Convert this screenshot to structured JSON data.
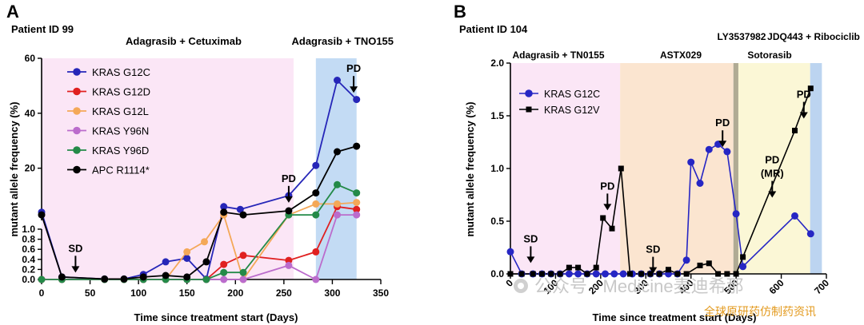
{
  "chart_data": [
    {
      "panel_label": "A",
      "type": "line",
      "title": "Patient ID 99",
      "xlabel": "Time since treatment start (Days)",
      "ylabel": "mutant allele frequency (%)",
      "xlim": [
        0,
        350
      ],
      "x_ticks": [
        "0",
        "50",
        "100",
        "150",
        "200",
        "250",
        "300",
        "350"
      ],
      "y_axis_broken": true,
      "ylim_lower": [
        0,
        1.0
      ],
      "ylim_upper": [
        1.0,
        60
      ],
      "y_ticks_lower": [
        "0.0",
        "0.2",
        "0.4",
        "0.6",
        "0.8",
        "1.0"
      ],
      "y_ticks_upper": [
        "20",
        "40",
        "60"
      ],
      "legend_position": "top-left",
      "treatment_periods": [
        {
          "label": "Adagrasib + Cetuximab",
          "start": 0,
          "end": 260,
          "color": "#fbe6f6"
        },
        {
          "label": "Adagrasib + TNO155",
          "start": 283,
          "end": 325,
          "color": "#c3dbf4"
        }
      ],
      "annotations": [
        {
          "text": "SD",
          "x": 35,
          "y_axis": "lower",
          "y": 0.55
        },
        {
          "text": "PD",
          "x": 255,
          "y_axis": "upper",
          "y": 15
        },
        {
          "text": "PD",
          "x": 322,
          "y_axis": "upper",
          "y": 55
        }
      ],
      "series": [
        {
          "name": "KRAS G12C",
          "color": "#2626b8",
          "points": [
            [
              0,
              4
            ],
            [
              21,
              0.05
            ],
            [
              65,
              0.01
            ],
            [
              85,
              0.01
            ],
            [
              105,
              0.1
            ],
            [
              128,
              0.35
            ],
            [
              150,
              0.42
            ],
            [
              170,
              0.01
            ],
            [
              188,
              6
            ],
            [
              205,
              5
            ],
            [
              255,
              10
            ],
            [
              283,
              21
            ],
            [
              305,
              52
            ],
            [
              325,
              45
            ]
          ]
        },
        {
          "name": "KRAS G12D",
          "color": "#e02020",
          "points": [
            [
              0,
              0.0
            ],
            [
              21,
              0.0
            ],
            [
              65,
              0.0
            ],
            [
              85,
              0.0
            ],
            [
              105,
              0.0
            ],
            [
              128,
              0.0
            ],
            [
              150,
              0.0
            ],
            [
              170,
              0.0
            ],
            [
              188,
              0.3
            ],
            [
              208,
              0.48
            ],
            [
              255,
              0.38
            ],
            [
              283,
              0.55
            ],
            [
              305,
              6
            ],
            [
              325,
              5
            ]
          ]
        },
        {
          "name": "KRAS G12L",
          "color": "#f4a858",
          "points": [
            [
              0,
              0.0
            ],
            [
              21,
              0.0
            ],
            [
              65,
              0.0
            ],
            [
              85,
              0.0
            ],
            [
              105,
              0.0
            ],
            [
              128,
              0.0
            ],
            [
              150,
              0.55
            ],
            [
              168,
              0.75
            ],
            [
              188,
              3
            ],
            [
              208,
              0.0
            ],
            [
              255,
              3
            ],
            [
              283,
              7
            ],
            [
              305,
              7
            ],
            [
              325,
              7.5
            ]
          ]
        },
        {
          "name": "KRAS Y96N",
          "color": "#bb6ccc",
          "points": [
            [
              0,
              0.0
            ],
            [
              21,
              0.0
            ],
            [
              65,
              0.0
            ],
            [
              85,
              0.0
            ],
            [
              105,
              0.0
            ],
            [
              128,
              0.0
            ],
            [
              150,
              0.0
            ],
            [
              170,
              0.0
            ],
            [
              188,
              0.0
            ],
            [
              208,
              0.0
            ],
            [
              255,
              0.28
            ],
            [
              283,
              0.0
            ],
            [
              305,
              3
            ],
            [
              325,
              3
            ]
          ]
        },
        {
          "name": "KRAS Y96D",
          "color": "#248a48",
          "points": [
            [
              0,
              0.0
            ],
            [
              21,
              0.0
            ],
            [
              65,
              0.0
            ],
            [
              85,
              0.0
            ],
            [
              105,
              0.0
            ],
            [
              128,
              0.0
            ],
            [
              150,
              0.0
            ],
            [
              170,
              0.0
            ],
            [
              188,
              0.14
            ],
            [
              208,
              0.14
            ],
            [
              255,
              3
            ],
            [
              283,
              3
            ],
            [
              305,
              14
            ],
            [
              325,
              11
            ]
          ]
        },
        {
          "name": "APC R1114*",
          "color": "#000000",
          "points": [
            [
              0,
              3
            ],
            [
              21,
              0.05
            ],
            [
              65,
              0.01
            ],
            [
              85,
              0.01
            ],
            [
              105,
              0.05
            ],
            [
              128,
              0.08
            ],
            [
              150,
              0.05
            ],
            [
              170,
              0.35
            ],
            [
              188,
              4
            ],
            [
              208,
              3
            ],
            [
              255,
              4.5
            ],
            [
              283,
              11
            ],
            [
              305,
              26
            ],
            [
              325,
              28
            ]
          ]
        }
      ]
    },
    {
      "panel_label": "B",
      "type": "line",
      "title": "Patient ID 104",
      "xlabel": "Time since treatment start (Days)",
      "ylabel": "mutant allele frequency (%)",
      "xlim": [
        0,
        700
      ],
      "ylim": [
        0,
        2.0
      ],
      "x_ticks": [
        "0",
        "100",
        "200",
        "300",
        "400",
        "500",
        "600",
        "700"
      ],
      "y_ticks": [
        "0.0",
        "0.5",
        "1.0",
        "1.5",
        "2.0"
      ],
      "legend_position": "top-left",
      "treatment_periods": [
        {
          "label": "Adagrasib + TN0155",
          "start": 0,
          "end": 243,
          "color": "#fbe6f6"
        },
        {
          "label": "ASTX029",
          "start": 243,
          "end": 494,
          "color": "#fbe5d0"
        },
        {
          "label": "LY3537982",
          "start": 494,
          "end": 505,
          "color": "#b0ab94"
        },
        {
          "label": "Sotorasib",
          "start": 505,
          "end": 664,
          "color": "#fbf7d6"
        },
        {
          "label": "JDQ443 + Ribociclib",
          "start": 664,
          "end": 690,
          "color": "#bcd4f0"
        }
      ],
      "annotations": [
        {
          "text": "SD",
          "x": 45,
          "y": 0.3
        },
        {
          "text": "PD",
          "x": 215,
          "y": 0.8
        },
        {
          "text": "SD",
          "x": 316,
          "y": 0.2
        },
        {
          "text": "PD",
          "x": 470,
          "y": 1.4
        },
        {
          "text": "PD",
          "x": 580,
          "y": 1.05
        },
        {
          "text": "(MR)",
          "x": 580,
          "y": 0.92
        },
        {
          "text": "PD",
          "x": 650,
          "y": 1.67
        }
      ],
      "series": [
        {
          "name": "KRAS G12C",
          "marker": "circle",
          "color": "#2626c4",
          "points": [
            [
              0,
              0.21
            ],
            [
              25,
              0.0
            ],
            [
              50,
              0.0
            ],
            [
              70,
              0.0
            ],
            [
              90,
              0.0
            ],
            [
              110,
              0.0
            ],
            [
              130,
              0.0
            ],
            [
              150,
              0.0
            ],
            [
              170,
              0.0
            ],
            [
              190,
              0.0
            ],
            [
              210,
              0.0
            ],
            [
              230,
              0.0
            ],
            [
              250,
              0.0
            ],
            [
              270,
              0.0
            ],
            [
              290,
              0.0
            ],
            [
              310,
              0.0
            ],
            [
              330,
              0.0
            ],
            [
              350,
              0.0
            ],
            [
              370,
              0.0
            ],
            [
              390,
              0.13
            ],
            [
              400,
              1.06
            ],
            [
              420,
              0.86
            ],
            [
              440,
              1.18
            ],
            [
              460,
              1.23
            ],
            [
              480,
              1.16
            ],
            [
              500,
              0.57
            ],
            [
              515,
              0.07
            ],
            [
              630,
              0.55
            ],
            [
              665,
              0.38
            ]
          ]
        },
        {
          "name": "KRAS G12V",
          "marker": "square",
          "color": "#000000",
          "points": [
            [
              0,
              0.0
            ],
            [
              25,
              0.0
            ],
            [
              50,
              0.0
            ],
            [
              70,
              0.0
            ],
            [
              90,
              0.0
            ],
            [
              110,
              0.0
            ],
            [
              130,
              0.06
            ],
            [
              150,
              0.06
            ],
            [
              170,
              0.0
            ],
            [
              190,
              0.06
            ],
            [
              205,
              0.53
            ],
            [
              225,
              0.43
            ],
            [
              245,
              1.0
            ],
            [
              265,
              0.0
            ],
            [
              290,
              0.0
            ],
            [
              310,
              0.0
            ],
            [
              330,
              0.0
            ],
            [
              350,
              0.04
            ],
            [
              370,
              0.0
            ],
            [
              390,
              0.0
            ],
            [
              420,
              0.08
            ],
            [
              440,
              0.1
            ],
            [
              460,
              0.0
            ],
            [
              480,
              0.0
            ],
            [
              500,
              0.0
            ],
            [
              515,
              0.16
            ],
            [
              630,
              1.36
            ],
            [
              665,
              1.76
            ]
          ]
        }
      ]
    }
  ],
  "watermark": {
    "text": "公众号 · Medicine麦迪希那",
    "subtext": "全球原研药仿制药资讯"
  }
}
